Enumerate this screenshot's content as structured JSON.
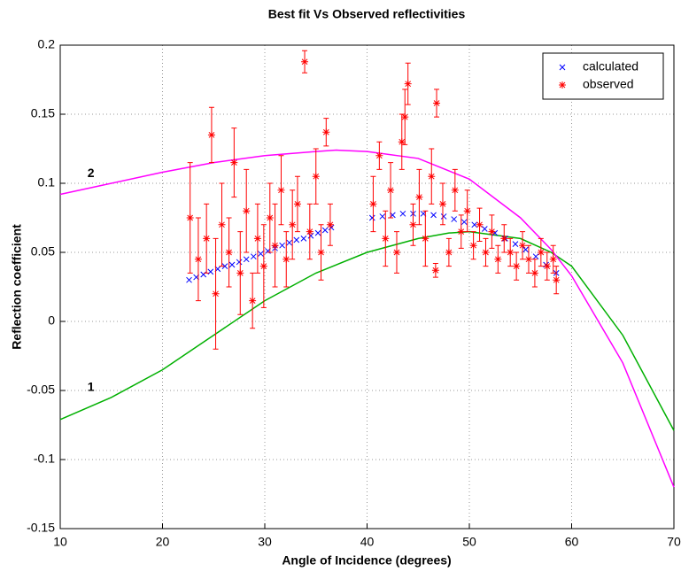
{
  "chart_data": {
    "type": "scatter",
    "title": "Best fit Vs Observed reflectivities",
    "x_label": "Angle of Incidence (degrees)",
    "y_label": "Reflection coefficient",
    "xlim": [
      10,
      70
    ],
    "ylim": [
      -0.15,
      0.2
    ],
    "xticks": [
      10,
      20,
      30,
      40,
      50,
      60,
      70
    ],
    "yticks": [
      -0.15,
      -0.1,
      -0.05,
      0,
      0.05,
      0.1,
      0.15,
      0.2
    ],
    "grid": true,
    "legend": "upper right",
    "series": [
      {
        "name": "calculated",
        "color": "#0000ff",
        "marker": "x",
        "x": [
          22.6,
          23.3,
          24,
          24.7,
          25.4,
          26.1,
          26.8,
          27.5,
          28.2,
          28.9,
          29.6,
          30.3,
          31,
          31.7,
          32.4,
          33.1,
          33.8,
          34.5,
          35.2,
          35.9,
          36.5,
          40.5,
          41.5,
          42.5,
          43.5,
          44.5,
          45.5,
          46.5,
          47.5,
          48.5,
          49.5,
          50.5,
          51.5,
          52.5,
          53.5,
          54.5,
          55.5,
          56.5,
          57.5,
          58.5
        ],
        "values": [
          0.03,
          0.032,
          0.034,
          0.036,
          0.038,
          0.04,
          0.041,
          0.043,
          0.045,
          0.047,
          0.049,
          0.051,
          0.053,
          0.055,
          0.057,
          0.059,
          0.06,
          0.062,
          0.064,
          0.066,
          0.068,
          0.075,
          0.076,
          0.077,
          0.078,
          0.078,
          0.078,
          0.077,
          0.076,
          0.074,
          0.072,
          0.07,
          0.067,
          0.064,
          0.06,
          0.056,
          0.052,
          0.047,
          0.041,
          0.035
        ]
      },
      {
        "name": "observed",
        "color": "#ff0000",
        "marker": "*",
        "x": [
          22.7,
          23.5,
          24.3,
          24.8,
          25.2,
          25.8,
          26.5,
          27,
          27.6,
          28.2,
          28.8,
          29.3,
          29.9,
          30.5,
          31,
          31.6,
          32.1,
          32.7,
          33.2,
          33.9,
          34.4,
          35,
          35.5,
          36,
          36.4,
          40.6,
          41.2,
          41.8,
          42.3,
          42.9,
          43.4,
          43.7,
          44,
          44.5,
          45.1,
          45.7,
          46.3,
          46.7,
          46.8,
          47.4,
          48,
          48.6,
          49.2,
          49.8,
          50.4,
          51,
          51.6,
          52.2,
          52.8,
          53.4,
          54,
          54.6,
          55.2,
          55.8,
          56.4,
          57,
          57.6,
          58.2,
          58.5
        ],
        "values": [
          0.075,
          0.045,
          0.06,
          0.135,
          0.02,
          0.07,
          0.05,
          0.115,
          0.035,
          0.08,
          0.015,
          0.06,
          0.04,
          0.075,
          0.055,
          0.095,
          0.045,
          0.07,
          0.085,
          0.188,
          0.065,
          0.105,
          0.05,
          0.137,
          0.07,
          0.085,
          0.12,
          0.06,
          0.095,
          0.05,
          0.13,
          0.148,
          0.172,
          0.07,
          0.09,
          0.06,
          0.105,
          0.037,
          0.158,
          0.085,
          0.05,
          0.095,
          0.065,
          0.08,
          0.055,
          0.07,
          0.05,
          0.065,
          0.045,
          0.06,
          0.05,
          0.04,
          0.055,
          0.045,
          0.035,
          0.05,
          0.04,
          0.045,
          0.03
        ],
        "errors": [
          0.04,
          0.03,
          0.025,
          0.02,
          0.04,
          0.03,
          0.025,
          0.025,
          0.03,
          0.03,
          0.02,
          0.025,
          0.03,
          0.025,
          0.03,
          0.025,
          0.02,
          0.025,
          0.02,
          0.008,
          0.02,
          0.02,
          0.02,
          0.01,
          0.015,
          0.02,
          0.01,
          0.02,
          0.02,
          0.015,
          0.02,
          0.02,
          0.015,
          0.015,
          0.02,
          0.02,
          0.02,
          0.005,
          0.01,
          0.015,
          0.01,
          0.015,
          0.012,
          0.015,
          0.01,
          0.012,
          0.01,
          0.012,
          0.01,
          0.01,
          0.01,
          0.01,
          0.01,
          0.01,
          0.01,
          0.01,
          0.01,
          0.01,
          0.01
        ]
      }
    ],
    "curves": [
      {
        "color": "#00b000",
        "x": [
          10,
          15,
          20,
          25,
          30,
          35,
          40,
          45,
          48,
          50,
          55,
          58,
          60,
          65,
          70
        ],
        "values": [
          -0.071,
          -0.055,
          -0.035,
          -0.01,
          0.015,
          0.035,
          0.05,
          0.06,
          0.064,
          0.065,
          0.06,
          0.05,
          0.04,
          -0.01,
          -0.079
        ]
      },
      {
        "color": "#ff00ff",
        "x": [
          10,
          15,
          20,
          25,
          30,
          35,
          37,
          40,
          45,
          50,
          55,
          58,
          60,
          65,
          70
        ],
        "values": [
          0.092,
          0.1,
          0.108,
          0.115,
          0.12,
          0.123,
          0.124,
          0.123,
          0.118,
          0.103,
          0.075,
          0.052,
          0.033,
          -0.03,
          -0.12
        ]
      }
    ],
    "annotations": [
      {
        "text": "1",
        "x": 13,
        "y": -0.048
      },
      {
        "text": "2",
        "x": 13,
        "y": 0.107
      }
    ]
  }
}
